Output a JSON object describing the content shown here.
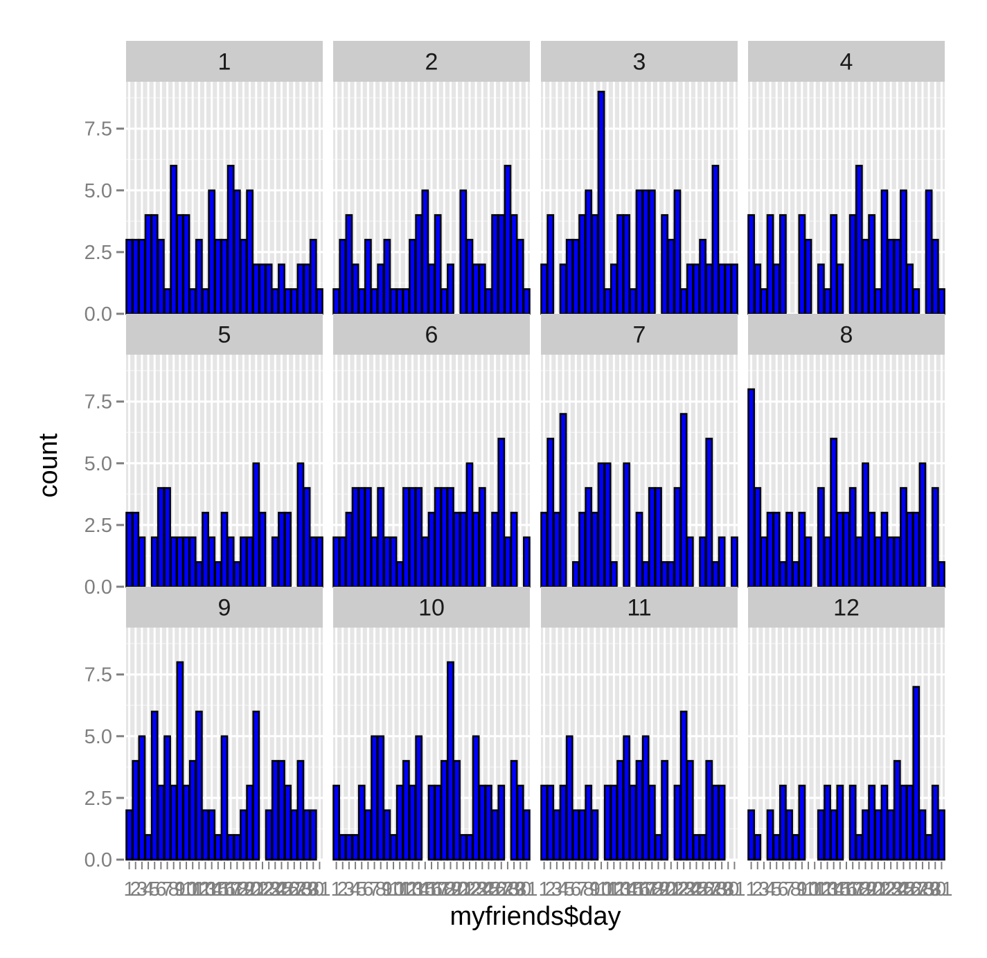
{
  "chart_data": {
    "type": "bar",
    "facet_by": "month",
    "xlabel": "myfriends$day",
    "ylabel": "count",
    "x_categories": [
      "1",
      "2",
      "3",
      "4",
      "5",
      "6",
      "7",
      "8",
      "9",
      "10",
      "11",
      "12",
      "13",
      "14",
      "15",
      "16",
      "17",
      "18",
      "19",
      "20",
      "21",
      "22",
      "23",
      "24",
      "25",
      "26",
      "27",
      "28",
      "29",
      "30",
      "31"
    ],
    "ylim": [
      0,
      9.4
    ],
    "y_ticks": [
      0,
      2.5,
      5,
      7.5
    ],
    "y_tick_labels": [
      "0.0",
      "2.5",
      "5.0",
      "7.5"
    ],
    "grid": true,
    "panel_background": "#e5e5e5",
    "strip_background": "#cccccc",
    "bar_fill": "#0000ff",
    "bar_outline": "#000000",
    "facets": [
      {
        "label": "1",
        "values": [
          3,
          3,
          3,
          4,
          4,
          3,
          1,
          6,
          4,
          4,
          1,
          3,
          1,
          5,
          3,
          3,
          6,
          5,
          3,
          5,
          2,
          2,
          2,
          1,
          2,
          1,
          1,
          2,
          2,
          3,
          1
        ]
      },
      {
        "label": "2",
        "values": [
          1,
          3,
          4,
          2,
          1,
          3,
          1,
          2,
          3,
          1,
          1,
          1,
          3,
          4,
          5,
          2,
          4,
          1,
          2,
          0,
          5,
          3,
          2,
          2,
          1,
          4,
          4,
          6,
          4,
          3,
          1
        ]
      },
      {
        "label": "3",
        "values": [
          2,
          4,
          0,
          2,
          3,
          3,
          4,
          5,
          4,
          9,
          1,
          2,
          4,
          4,
          1,
          5,
          5,
          5,
          0,
          4,
          3,
          5,
          1,
          2,
          2,
          3,
          2,
          6,
          2,
          2,
          2
        ]
      },
      {
        "label": "4",
        "values": [
          4,
          2,
          1,
          4,
          2,
          4,
          0,
          0,
          4,
          3,
          0,
          2,
          1,
          4,
          2,
          0,
          4,
          6,
          3,
          4,
          1,
          5,
          3,
          3,
          5,
          2,
          1,
          0,
          5,
          3,
          1
        ]
      },
      {
        "label": "5",
        "values": [
          3,
          3,
          2,
          0,
          2,
          4,
          4,
          2,
          2,
          2,
          2,
          1,
          3,
          2,
          1,
          3,
          2,
          1,
          2,
          2,
          5,
          3,
          0,
          2,
          3,
          3,
          0,
          5,
          4,
          2,
          2
        ]
      },
      {
        "label": "6",
        "values": [
          2,
          2,
          3,
          4,
          4,
          4,
          2,
          4,
          2,
          2,
          1,
          4,
          4,
          4,
          2,
          3,
          4,
          4,
          4,
          3,
          3,
          5,
          3,
          4,
          0,
          3,
          6,
          2,
          3,
          0,
          2
        ]
      },
      {
        "label": "7",
        "values": [
          3,
          6,
          3,
          7,
          0,
          1,
          3,
          4,
          3,
          5,
          5,
          1,
          0,
          5,
          0,
          3,
          1,
          4,
          4,
          1,
          1,
          4,
          7,
          2,
          0,
          2,
          6,
          1,
          2,
          0,
          2
        ]
      },
      {
        "label": "8",
        "values": [
          8,
          4,
          2,
          3,
          3,
          1,
          3,
          1,
          3,
          2,
          0,
          4,
          2,
          6,
          3,
          3,
          4,
          2,
          5,
          3,
          2,
          3,
          2,
          2,
          4,
          3,
          3,
          5,
          0,
          4,
          1
        ]
      },
      {
        "label": "9",
        "values": [
          2,
          4,
          5,
          1,
          6,
          3,
          5,
          3,
          8,
          3,
          4,
          6,
          2,
          2,
          1,
          5,
          1,
          1,
          2,
          3,
          6,
          0,
          2,
          4,
          4,
          3,
          2,
          4,
          2,
          2,
          0
        ]
      },
      {
        "label": "10",
        "values": [
          3,
          1,
          1,
          1,
          3,
          2,
          5,
          5,
          2,
          1,
          3,
          4,
          3,
          5,
          0,
          3,
          3,
          4,
          8,
          4,
          1,
          1,
          5,
          3,
          3,
          2,
          3,
          0,
          4,
          3,
          2
        ]
      },
      {
        "label": "11",
        "values": [
          3,
          3,
          2,
          3,
          5,
          2,
          2,
          3,
          2,
          0,
          3,
          3,
          4,
          5,
          3,
          4,
          5,
          3,
          1,
          4,
          0,
          3,
          6,
          4,
          1,
          1,
          4,
          3,
          3,
          0,
          0
        ]
      },
      {
        "label": "12",
        "values": [
          2,
          1,
          0,
          2,
          1,
          3,
          2,
          1,
          3,
          0,
          0,
          2,
          3,
          2,
          3,
          0,
          3,
          1,
          2,
          3,
          2,
          3,
          2,
          4,
          3,
          3,
          7,
          2,
          1,
          3,
          2
        ]
      }
    ]
  }
}
